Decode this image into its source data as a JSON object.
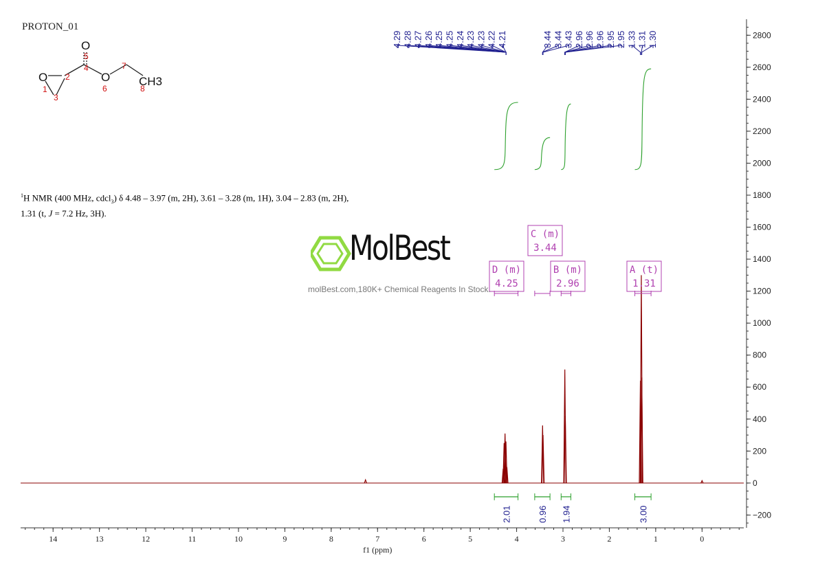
{
  "title": "PROTON_01",
  "nmr_text": {
    "line1_pre": "H NMR (400 MHz, cdcl",
    "line1_sup": "1",
    "line1_sub": "3",
    "line1_post": ") δ 4.48 – 3.97 (m, 2H), 3.61 – 3.28 (m, 1H), 3.04 – 2.83 (m, 2H),",
    "line2_pre": "1.31 (t, ",
    "line2_j": "J",
    "line2_post": " = 7.2 Hz, 3H)."
  },
  "watermark": {
    "name": "MolBest",
    "tagline": "molBest.com,180K+ Chemical Reagents In Stock."
  },
  "molecule": {
    "atoms": [
      "O",
      "O",
      "O",
      "CH3"
    ],
    "numbers": [
      "1",
      "2",
      "3",
      "4",
      "5",
      "6",
      "7",
      "8"
    ]
  },
  "colors": {
    "spectrum": "#8b0000",
    "integral": "#2ca02c",
    "peak_labels": "#1f1f8f",
    "multiplet_boxes": "#b040b0",
    "axis": "#333333"
  },
  "chart_data": {
    "type": "line",
    "xlabel": "f1 (ppm)",
    "x_reversed": true,
    "xlim": [
      14.7,
      -0.9
    ],
    "x_ticks": [
      14,
      13,
      12,
      11,
      10,
      9,
      8,
      7,
      6,
      5,
      4,
      3,
      2,
      1,
      0
    ],
    "ylim": [
      -280,
      2900
    ],
    "y_ticks": [
      -200,
      0,
      200,
      400,
      600,
      800,
      1000,
      1200,
      1400,
      1600,
      1800,
      2000,
      2200,
      2400,
      2600,
      2800
    ],
    "peaks": [
      {
        "ppm": 7.26,
        "height": 20
      },
      {
        "ppm": 4.29,
        "height": 90
      },
      {
        "ppm": 4.27,
        "height": 250
      },
      {
        "ppm": 4.25,
        "height": 310
      },
      {
        "ppm": 4.23,
        "height": 260
      },
      {
        "ppm": 4.21,
        "height": 100
      },
      {
        "ppm": 3.44,
        "height": 360
      },
      {
        "ppm": 3.43,
        "height": 300
      },
      {
        "ppm": 2.96,
        "height": 710
      },
      {
        "ppm": 2.95,
        "height": 420
      },
      {
        "ppm": 1.33,
        "height": 640
      },
      {
        "ppm": 1.31,
        "height": 1300
      },
      {
        "ppm": 1.3,
        "height": 660
      },
      {
        "ppm": 0.0,
        "height": 15
      }
    ],
    "peak_labels": [
      {
        "group": "left",
        "labels": [
          "4.29",
          "4.28",
          "4.27",
          "4.26",
          "4.25",
          "4.25",
          "4.24",
          "4.23",
          "4.23",
          "4.22",
          "4.21"
        ],
        "target_ppm": 4.25
      },
      {
        "group": "right",
        "labels": [
          "3.44",
          "3.44",
          "3.43",
          "2.96",
          "2.96",
          "2.96",
          "2.95",
          "2.95",
          "1.33",
          "1.31",
          "1.30"
        ]
      }
    ],
    "multiplets": [
      {
        "letter": "D",
        "type": "(m)",
        "shift": "4.25",
        "range": [
          4.48,
          3.97
        ]
      },
      {
        "letter": "C",
        "type": "(m)",
        "shift": "3.44",
        "range": [
          3.61,
          3.28
        ]
      },
      {
        "letter": "B",
        "type": "(m)",
        "shift": "2.96",
        "range": [
          3.04,
          2.83
        ]
      },
      {
        "letter": "A",
        "type": "(t)",
        "shift": "1.31",
        "range": [
          1.45,
          1.1
        ]
      }
    ],
    "integrals": [
      {
        "range": [
          4.48,
          3.97
        ],
        "value": "2.01",
        "y_start": 1960,
        "y_end": 2380
      },
      {
        "range": [
          3.61,
          3.28
        ],
        "value": "0.96",
        "y_start": 1960,
        "y_end": 2160
      },
      {
        "range": [
          3.04,
          2.83
        ],
        "value": "1.94",
        "y_start": 1960,
        "y_end": 2370
      },
      {
        "range": [
          1.45,
          1.1
        ],
        "value": "3.00",
        "y_start": 1960,
        "y_end": 2590
      }
    ]
  }
}
